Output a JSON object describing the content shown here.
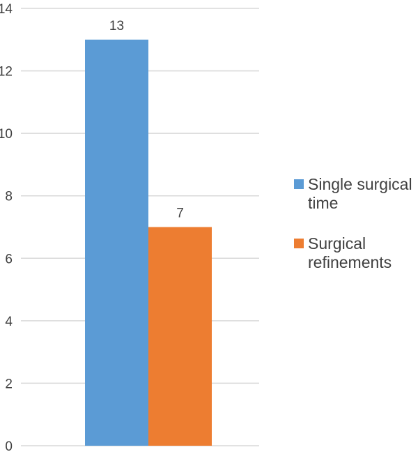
{
  "chart_data": {
    "type": "bar",
    "title": "",
    "xlabel": "",
    "ylabel": "",
    "ylim": [
      0,
      14
    ],
    "yticks": [
      0,
      2,
      4,
      6,
      8,
      10,
      12,
      14
    ],
    "grid": true,
    "legend_position": "right",
    "categories": [
      ""
    ],
    "series": [
      {
        "name": "Single surgical time",
        "values": [
          13
        ],
        "color": "#5b9bd5",
        "data_labels": [
          "13"
        ]
      },
      {
        "name": "Surgical refinements",
        "values": [
          7
        ],
        "color": "#ed7d31",
        "data_labels": [
          "7"
        ]
      }
    ]
  }
}
